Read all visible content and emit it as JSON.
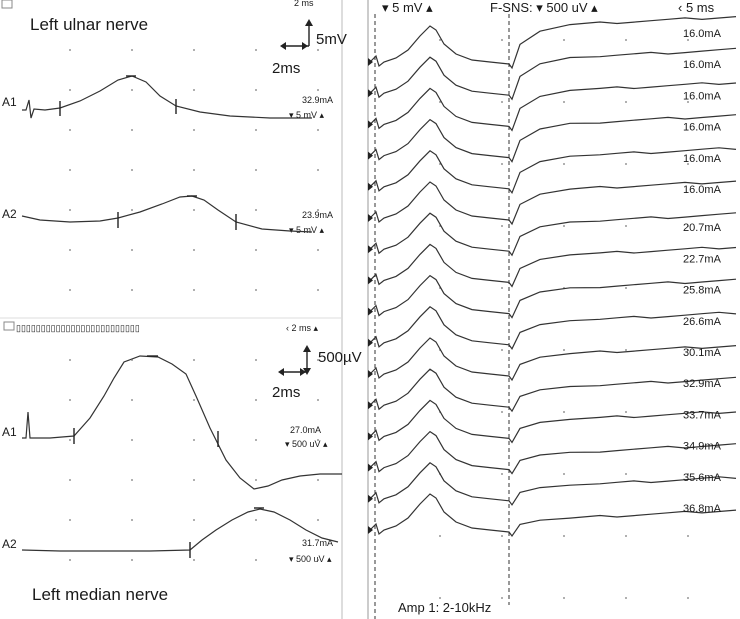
{
  "ulnar": {
    "title": "Left ulnar nerve",
    "scale_v": "5mV",
    "scale_t": "2ms",
    "header": "2 ms",
    "channels": [
      {
        "name": "A1",
        "intensity": "32.9mA",
        "gain": "▾ 5 mV ▴"
      },
      {
        "name": "A2",
        "intensity": "23.9mA",
        "gain": "▾ 5 mV ▴"
      }
    ]
  },
  "median": {
    "title": "Left median nerve",
    "scale_v": "500µV",
    "scale_t": "2ms",
    "header": "‹ 2 ms ▴",
    "header_boxes": "▯▯▯▯▯▯▯▯▯▯▯▯▯▯▯▯▯▯▯▯▯▯▯▯▯",
    "channels": [
      {
        "name": "A1",
        "intensity": "27.0mA",
        "gain": "▾ 500 uV ▴"
      },
      {
        "name": "A2",
        "intensity": "31.7mA",
        "gain": "▾ 500 uV ▴"
      }
    ]
  },
  "fwave": {
    "header_left": "▾ 5 mV ▴",
    "header_mid": "F-SNS: ▾ 500 uV ▴",
    "header_right": "‹ 5 ms",
    "footer": "Amp 1: 2-10kHz",
    "intensities": [
      "16.0mA",
      "16.0mA",
      "16.0mA",
      "16.0mA",
      "16.0mA",
      "16.0mA",
      "20.7mA",
      "22.7mA",
      "25.8mA",
      "26.6mA",
      "30.1mA",
      "32.9mA",
      "33.7mA",
      "34.9mA",
      "35.6mA",
      "36.8mA"
    ]
  }
}
